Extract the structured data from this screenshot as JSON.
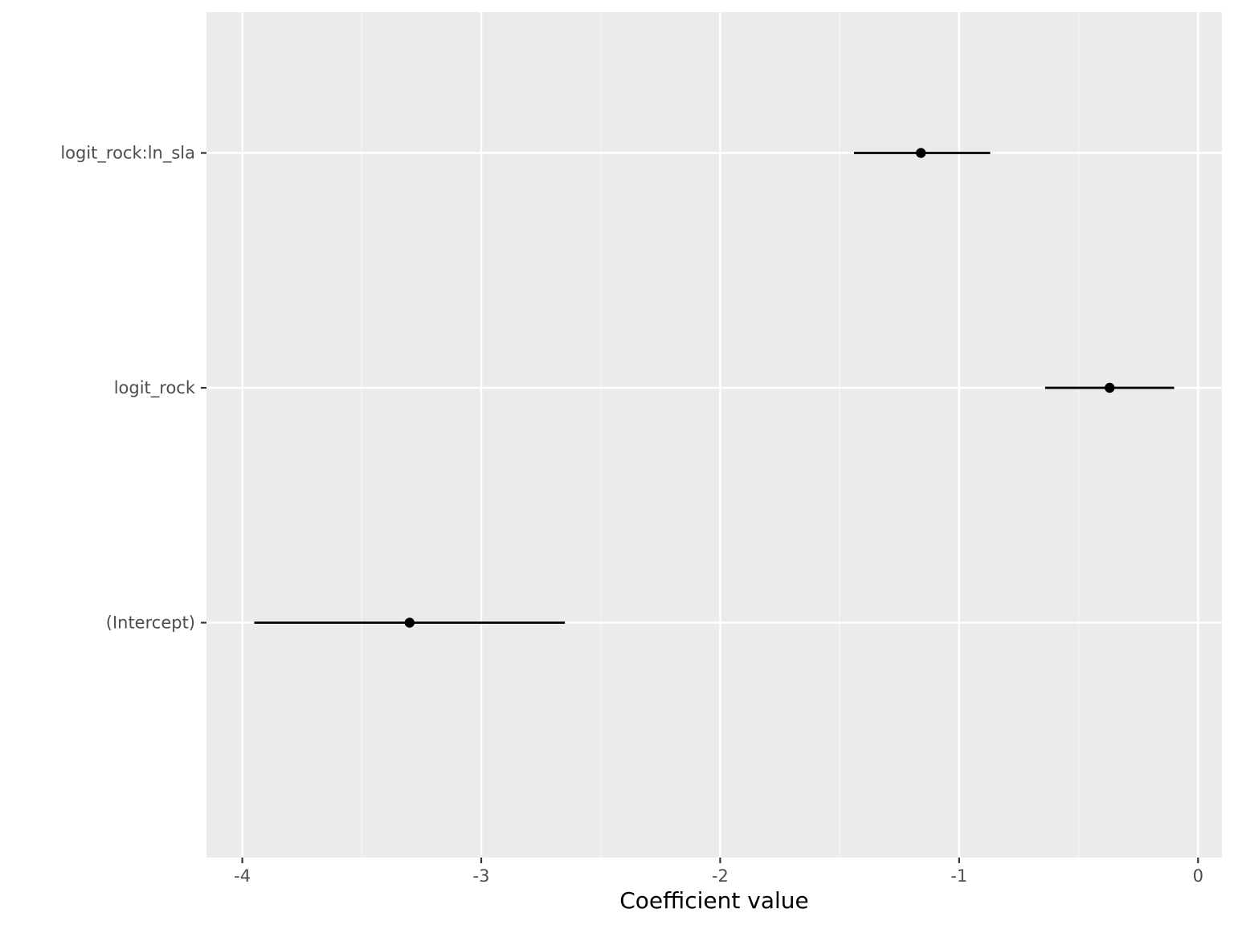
{
  "chart_data": {
    "type": "coefficient-plot",
    "title": "",
    "xlabel": "Coefficient value",
    "ylabel": "",
    "xlim": [
      -4.15,
      0.1
    ],
    "x_ticks": [
      -4,
      -3,
      -2,
      -1,
      0
    ],
    "x_tick_labels": [
      "-4",
      "-3",
      "-2",
      "-1",
      "0"
    ],
    "x_minor_ticks": [
      -3.5,
      -2.5,
      -1.5,
      -0.5
    ],
    "categories": [
      "logit_rock:ln_sla",
      "logit_rock",
      "(Intercept)"
    ],
    "points": [
      {
        "term": "logit_rock:ln_sla",
        "estimate": -1.16,
        "lower": -1.44,
        "upper": -0.87
      },
      {
        "term": "logit_rock",
        "estimate": -0.37,
        "lower": -0.64,
        "upper": -0.1
      },
      {
        "term": "(Intercept)",
        "estimate": -3.3,
        "lower": -3.95,
        "upper": -2.65
      }
    ],
    "grid": true,
    "legend": "none",
    "colors": {
      "panel_background": "#ebebeb",
      "grid_major": "#ffffff",
      "grid_minor": "#f5f5f5",
      "mark": "#000000",
      "tick_text": "#4d4d4d",
      "tick_mark": "#333333"
    }
  }
}
